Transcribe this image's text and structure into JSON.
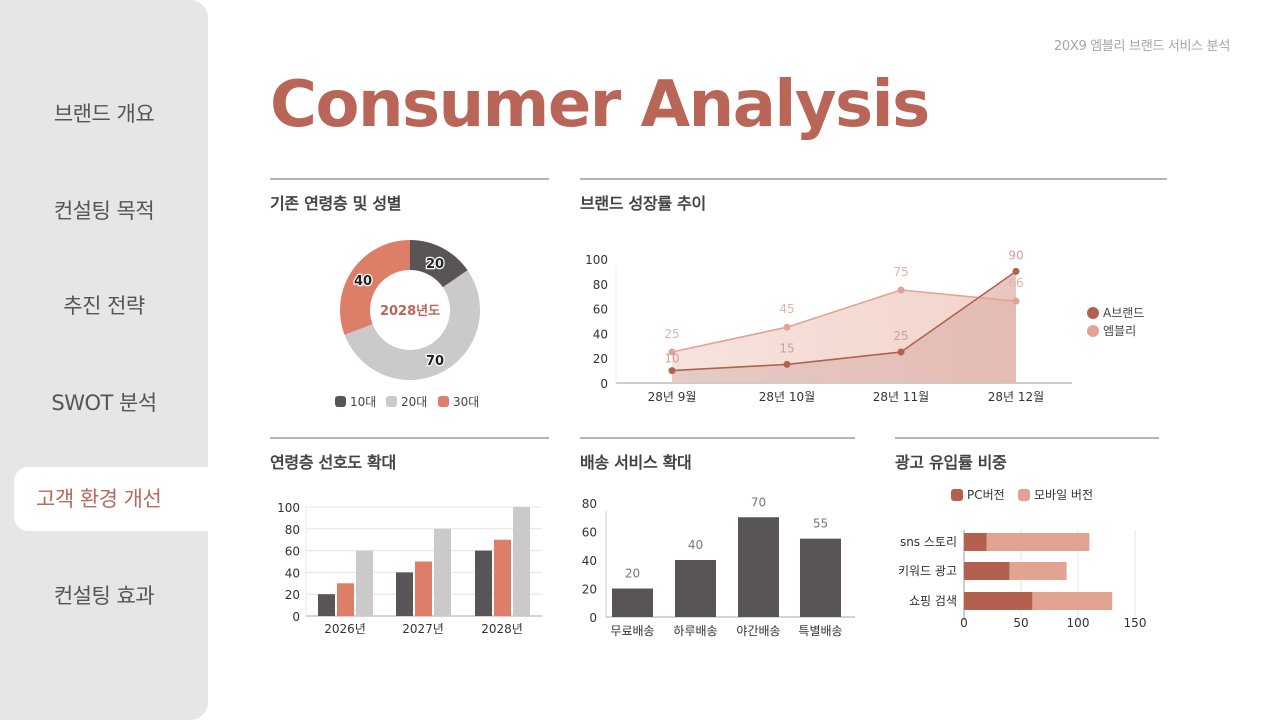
{
  "header": {
    "caption": "20X9 엠블리 브랜드 서비스 분석",
    "title": "Consumer Analysis"
  },
  "sidebar": {
    "items": [
      {
        "label": "브랜드 개요",
        "active": false
      },
      {
        "label": "컨설팅 목적",
        "active": false
      },
      {
        "label": "추진 전략",
        "active": false
      },
      {
        "label": "SWOT 분석",
        "active": false
      },
      {
        "label": "고객 환경 개선",
        "active": true
      },
      {
        "label": "컨설팅 효과",
        "active": false
      }
    ]
  },
  "colors": {
    "accent": "#b96557",
    "dark_gray": "#595557",
    "light_gray": "#cbc9ca",
    "salmon": "#dd7f68",
    "brand_a": "#b4604f",
    "embly": "#e2a392"
  },
  "sections": {
    "donut": {
      "title": "기존 연령층 및 성별"
    },
    "line": {
      "title": "브랜드 성장률 추이"
    },
    "age_bar": {
      "title": "연령층 선호도 확대"
    },
    "delivery": {
      "title": "배송 서비스 확대"
    },
    "ads": {
      "title": "광고 유입률 비중"
    }
  },
  "chart_data": [
    {
      "id": "donut",
      "type": "pie",
      "title": "기존 연령층 및 성별",
      "center_label": "2028년도",
      "categories": [
        "10대",
        "20대",
        "30대"
      ],
      "values": [
        20,
        70,
        40
      ],
      "colors": [
        "#595557",
        "#cbc9ca",
        "#dd7f68"
      ],
      "legend_position": "bottom"
    },
    {
      "id": "line",
      "type": "area",
      "title": "브랜드 성장률 추이",
      "categories": [
        "28년 9월",
        "28년 10월",
        "28년 11월",
        "28년 12월"
      ],
      "series": [
        {
          "name": "A브랜드",
          "values": [
            10,
            15,
            25,
            90
          ],
          "color": "#b4604f"
        },
        {
          "name": "엠블리",
          "values": [
            25,
            45,
            75,
            66
          ],
          "color": "#e2a392"
        }
      ],
      "ylim": [
        0,
        100
      ],
      "yticks": [
        0,
        20,
        40,
        60,
        80,
        100
      ],
      "grid": false,
      "legend_position": "right"
    },
    {
      "id": "age_bar",
      "type": "bar",
      "title": "연령층 선호도 확대",
      "categories": [
        "2026년",
        "2027년",
        "2028년"
      ],
      "series": [
        {
          "name": "10대",
          "values": [
            20,
            40,
            60
          ],
          "color": "#595557"
        },
        {
          "name": "30대",
          "values": [
            30,
            50,
            70
          ],
          "color": "#dd7f68"
        },
        {
          "name": "20대",
          "values": [
            60,
            80,
            100
          ],
          "color": "#cbc9ca"
        }
      ],
      "ylim": [
        0,
        100
      ],
      "yticks": [
        0,
        20,
        40,
        60,
        80,
        100
      ],
      "grid": true
    },
    {
      "id": "delivery",
      "type": "bar",
      "title": "배송 서비스 확대",
      "categories": [
        "무료배송",
        "하루배송",
        "야간배송",
        "특별배송"
      ],
      "values": [
        20,
        40,
        70,
        55
      ],
      "color": "#595557",
      "ylim": [
        0,
        80
      ],
      "yticks": [
        0,
        20,
        40,
        60,
        80
      ],
      "grid": false,
      "data_labels": true
    },
    {
      "id": "ads",
      "type": "bar",
      "orientation": "horizontal",
      "stacked": true,
      "title": "광고 유입률 비중",
      "categories": [
        "sns 스토리",
        "키워드 광고",
        "쇼핑 검색"
      ],
      "series": [
        {
          "name": "PC버전",
          "values": [
            20,
            40,
            60
          ],
          "color": "#b4604f"
        },
        {
          "name": "모바일 버전",
          "values": [
            90,
            50,
            70
          ],
          "color": "#e2a392"
        }
      ],
      "xlim": [
        0,
        150
      ],
      "xticks": [
        0,
        50,
        100,
        150
      ],
      "grid": true,
      "legend_position": "top"
    }
  ]
}
